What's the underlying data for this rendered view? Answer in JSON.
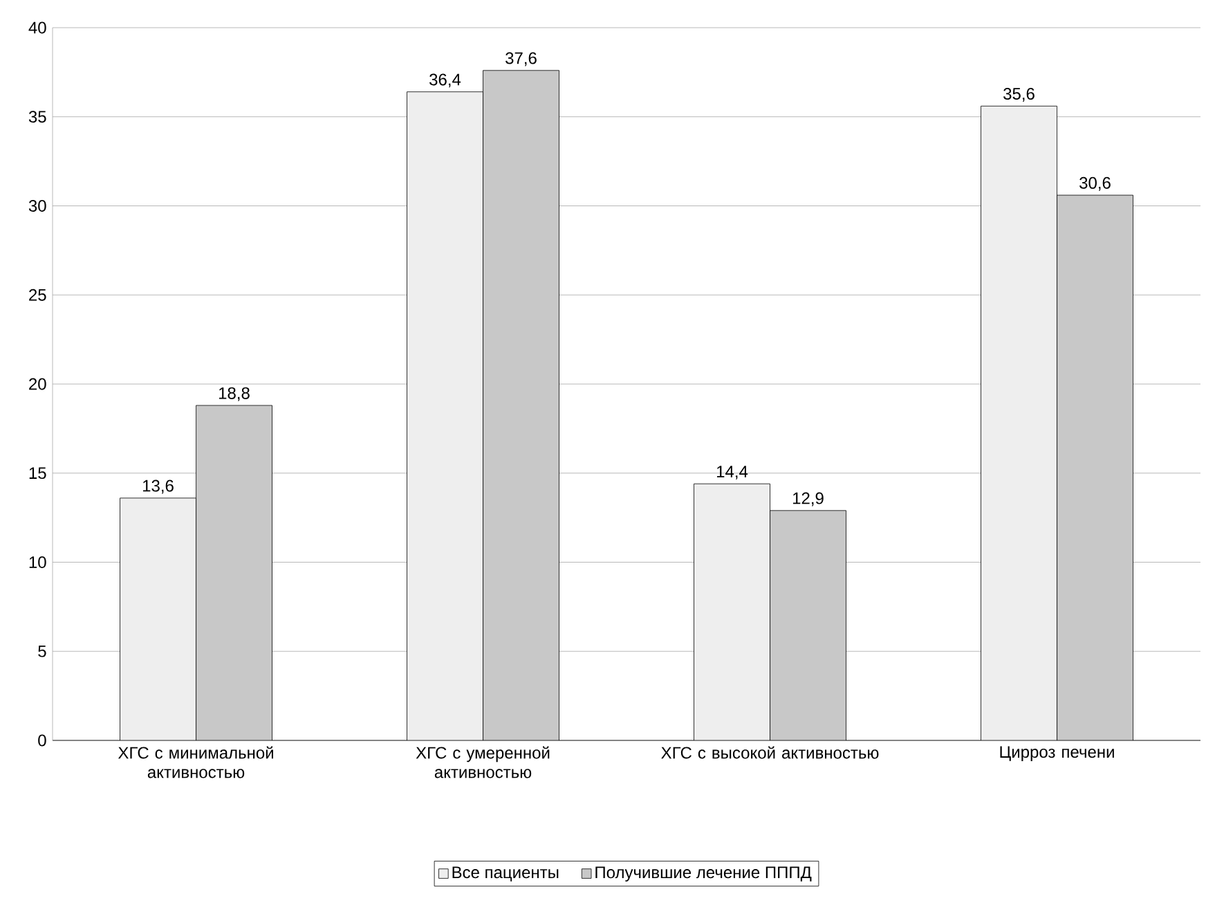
{
  "chart_data": {
    "type": "bar",
    "categories": [
      "ХГС с минимальной активностью",
      "ХГС с умеренной активностью",
      "ХГС с высокой активностью",
      "Цирроз печени"
    ],
    "series": [
      {
        "name": "Все пациенты",
        "color": "#eeeeee",
        "values": [
          13.6,
          36.4,
          14.4,
          35.6
        ],
        "value_labels": [
          "13,6",
          "36,4",
          "14,4",
          "35,6"
        ]
      },
      {
        "name": "Получившие лечение ПППД",
        "color": "#c8c8c8",
        "values": [
          18.8,
          37.6,
          12.9,
          30.6
        ],
        "value_labels": [
          "18,8",
          "37,6",
          "12,9",
          "30,6"
        ]
      }
    ],
    "ylim": [
      0,
      40
    ],
    "yticks": [
      0,
      5,
      10,
      15,
      20,
      25,
      30,
      35,
      40
    ],
    "grid": "y",
    "legend": "bottom"
  }
}
